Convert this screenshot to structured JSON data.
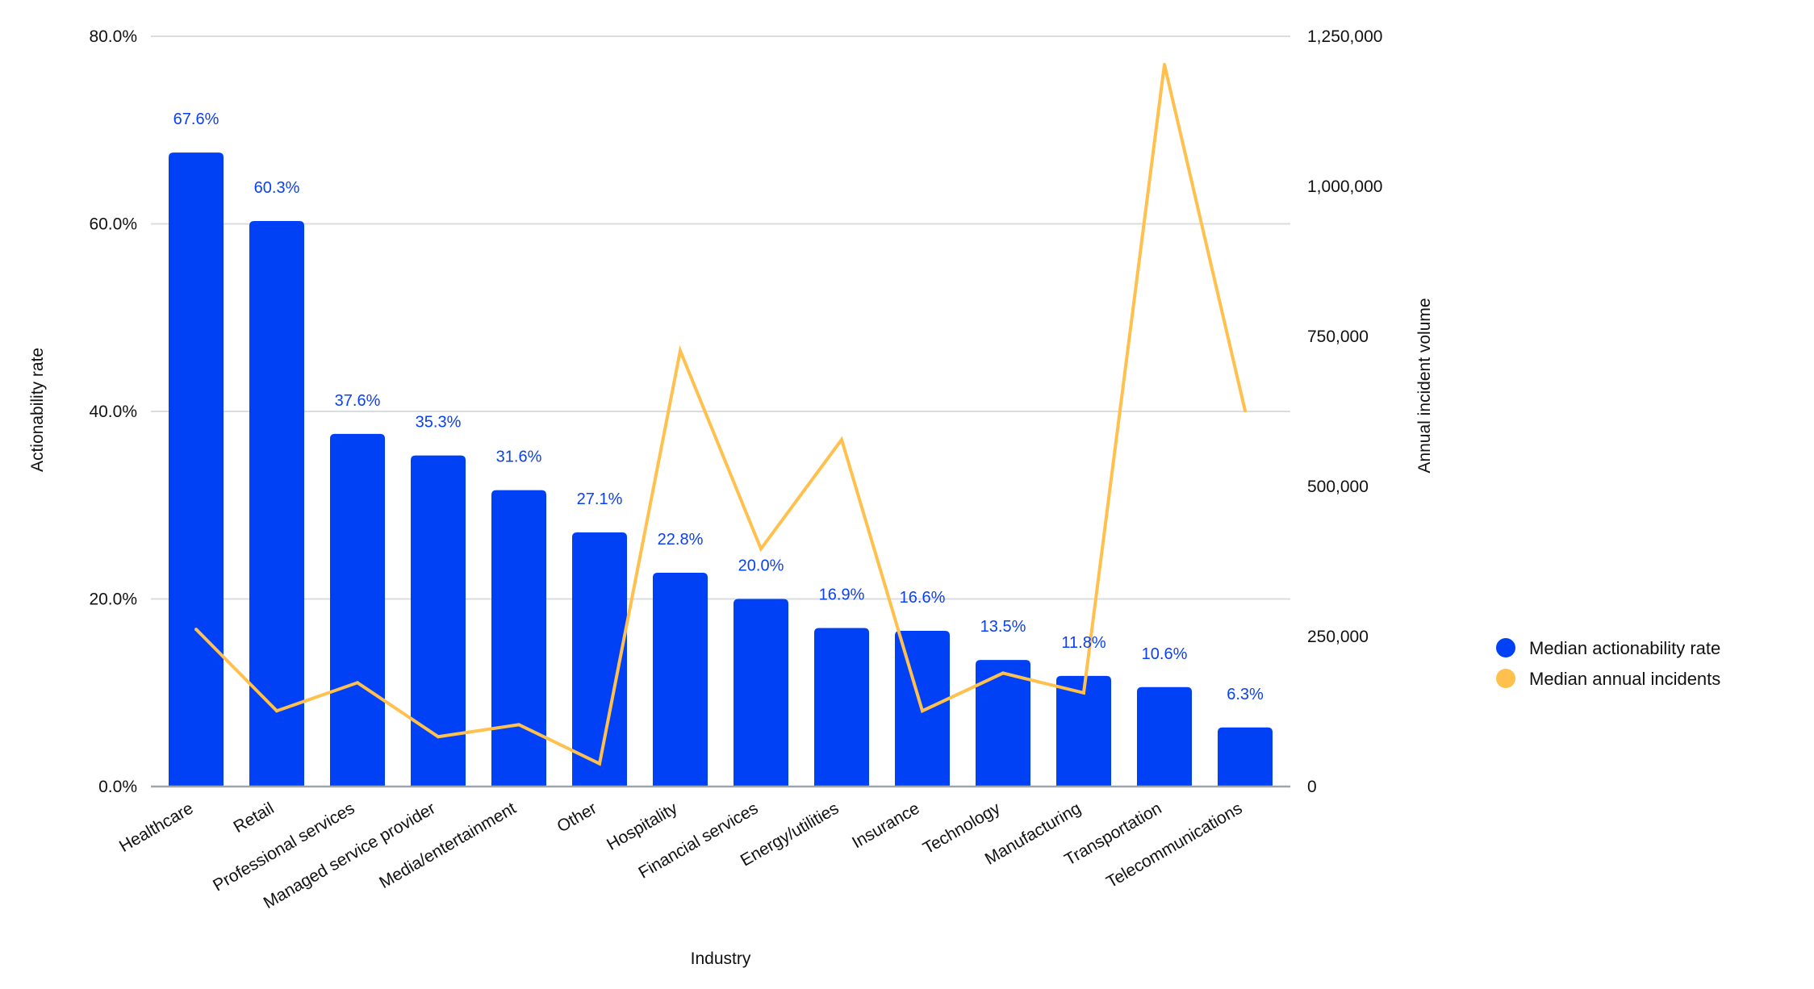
{
  "chart_data": {
    "type": "bar",
    "combo": "bar+line",
    "xlabel": "Industry",
    "ylabel": "Actionability rate",
    "y2label": "Annual incident volume",
    "ylim": [
      0,
      80
    ],
    "y2lim": [
      0,
      1250000
    ],
    "grid": true,
    "legend_position": "right",
    "categories": [
      "Healthcare",
      "Retail",
      "Professional services",
      "Managed service provider",
      "Media/entertainment",
      "Other",
      "Hospitality",
      "Financial services",
      "Energy/utilities",
      "Insurance",
      "Technology",
      "Manufacturing",
      "Transportation",
      "Telecommunications"
    ],
    "yticks": [
      {
        "value": 0,
        "label": "0.0%"
      },
      {
        "value": 20,
        "label": "20.0%"
      },
      {
        "value": 40,
        "label": "40.0%"
      },
      {
        "value": 60,
        "label": "60.0%"
      },
      {
        "value": 80,
        "label": "80.0%"
      }
    ],
    "y2ticks": [
      {
        "value": 0,
        "label": "0"
      },
      {
        "value": 250000,
        "label": "250,000"
      },
      {
        "value": 500000,
        "label": "500,000"
      },
      {
        "value": 750000,
        "label": "750,000"
      },
      {
        "value": 1000000,
        "label": "1,000,000"
      },
      {
        "value": 1250000,
        "label": "1,250,000"
      }
    ],
    "series": [
      {
        "name": "Median actionability rate",
        "type": "bar",
        "axis": "left",
        "color": "#0041f5",
        "values": [
          67.6,
          60.3,
          37.6,
          35.3,
          31.6,
          27.1,
          22.8,
          20.0,
          16.9,
          16.6,
          13.5,
          11.8,
          10.6,
          6.3
        ],
        "labels": [
          "67.6%",
          "60.3%",
          "37.6%",
          "35.3%",
          "31.6%",
          "27.1%",
          "22.8%",
          "20.0%",
          "16.9%",
          "16.6%",
          "13.5%",
          "11.8%",
          "10.6%",
          "6.3%"
        ]
      },
      {
        "name": "Median annual incidents",
        "type": "line",
        "axis": "right",
        "color": "#ffc04d",
        "values": [
          262000,
          126000,
          173000,
          83000,
          103000,
          38000,
          726000,
          396000,
          578000,
          126000,
          189000,
          156000,
          1203000,
          626000
        ]
      }
    ]
  },
  "colors": {
    "bar": "#0041f5",
    "line": "#ffc04d",
    "grid": "#d9dde0",
    "baseline": "#9aa5ad",
    "bar_label": "#0a41f0"
  }
}
